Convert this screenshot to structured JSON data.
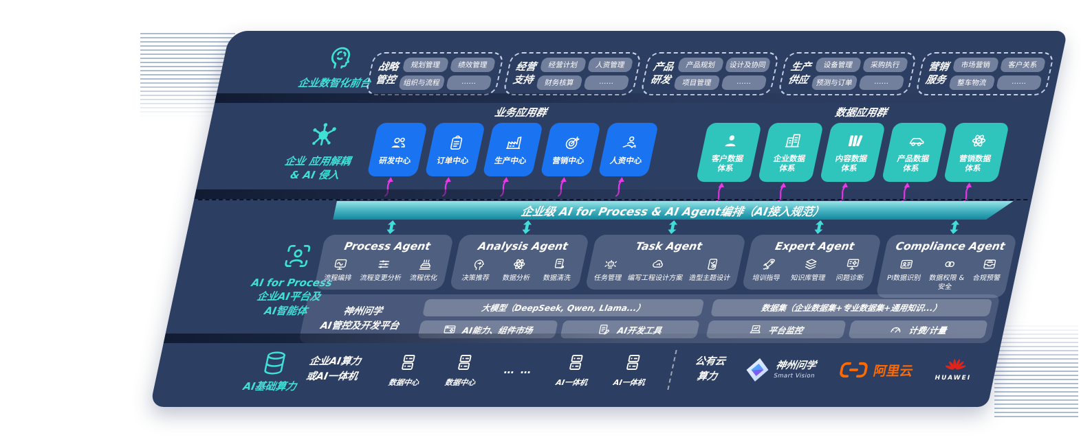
{
  "colors": {
    "panel_bg": "#2d3e63",
    "teal_accent": "#3fe0d6",
    "blue_tile": "#1a73f0",
    "teal_tile": "#2fc5bd",
    "magenta_arrow": "#e83ae8",
    "bus_gradient_top": "#9ae5e6",
    "bus_gradient_bottom": "#12889e",
    "aliyun_orange": "#ff6a00",
    "huawei_red": "#e2231a"
  },
  "front_office": {
    "label": "企业数智化前台",
    "icon": "brain-head",
    "groups": [
      {
        "title": "战略\n管控",
        "items": [
          "规划管理",
          "绩效管理",
          "组织与流程",
          "……"
        ]
      },
      {
        "title": "经营\n支持",
        "items": [
          "经营计划",
          "人资管理",
          "财务核算",
          "……"
        ]
      },
      {
        "title": "产品\n研发",
        "items": [
          "产品规划",
          "设计及协同",
          "项目管理",
          "……"
        ]
      },
      {
        "title": "生产\n供应",
        "items": [
          "设备管理",
          "采购执行",
          "预测与订单",
          "……"
        ]
      },
      {
        "title": "营销\n服务",
        "items": [
          "市场营销",
          "客户关系",
          "整车物流",
          "……"
        ]
      }
    ]
  },
  "decoupling": {
    "label": "企业 应用解耦\n& AI 侵入",
    "icon": "neuron",
    "business_group": {
      "title": "业务应用群",
      "tiles": [
        {
          "label": "研发中心",
          "icon": "users"
        },
        {
          "label": "订单中心",
          "icon": "clipboard"
        },
        {
          "label": "生产中心",
          "icon": "factory"
        },
        {
          "label": "营销中心",
          "icon": "target"
        },
        {
          "label": "人资中心",
          "icon": "person-trend"
        }
      ]
    },
    "data_group": {
      "title": "数据应用群",
      "tiles": [
        {
          "label": "客户数据\n体系",
          "icon": "person"
        },
        {
          "label": "企业数据\n体系",
          "icon": "building"
        },
        {
          "label": "内容数据\n体系",
          "icon": "books"
        },
        {
          "label": "产品数据\n体系",
          "icon": "car"
        },
        {
          "label": "营销数据\n体系",
          "icon": "atom"
        }
      ]
    }
  },
  "ai_bus": {
    "label": "企业级 AI for Process & AI Agent编排（AI接入规范）"
  },
  "ai_platform": {
    "label": "AI for Process\n企业AI平台及\nAI智能体",
    "icon": "scan-person",
    "agents": [
      {
        "title": "Process Agent",
        "items": [
          {
            "label": "流程编排",
            "icon": "monitor-wave"
          },
          {
            "label": "流程变更分析",
            "icon": "sliders"
          },
          {
            "label": "流程优化",
            "icon": "machine"
          }
        ]
      },
      {
        "title": "Analysis Agent",
        "items": [
          {
            "label": "决策推荐",
            "icon": "head-idea"
          },
          {
            "label": "数据分析",
            "icon": "atom"
          },
          {
            "label": "数据清洗",
            "icon": "doc-refresh"
          }
        ]
      },
      {
        "title": "Task Agent",
        "items": [
          {
            "label": "任务管理",
            "icon": "bot"
          },
          {
            "label": "编写工程设计方案",
            "icon": "cloud-nodes"
          },
          {
            "label": "造型主题设计",
            "icon": "tablet-check"
          }
        ]
      },
      {
        "title": "Expert Agent",
        "items": [
          {
            "label": "培训指导",
            "icon": "rocket"
          },
          {
            "label": "知识库管理",
            "icon": "layers"
          },
          {
            "label": "问题诊断",
            "icon": "screen-gear"
          }
        ]
      },
      {
        "title": "Compliance Agent",
        "items": [
          {
            "label": "PI数据识别",
            "icon": "id-card"
          },
          {
            "label": "数据权限 &\n安全",
            "icon": "links"
          },
          {
            "label": "合规预警",
            "icon": "inbox-alert"
          }
        ]
      }
    ],
    "platform": {
      "name": "神州问学\nAI管控及开发平台",
      "model_bar": "大模型（DeepSeek, Qwen, Llama...）",
      "dataset_bar": "数据集（企业数据集+专业数据集+通用知识...）",
      "cells": [
        {
          "label": "AI能力、组件市场",
          "icon": "window-gear"
        },
        {
          "label": "AI开发工具",
          "icon": "doc-pencil"
        },
        {
          "label": "平台监控",
          "icon": "laptop-chart"
        },
        {
          "label": "计费/计量",
          "icon": "gauge"
        }
      ]
    }
  },
  "infrastructure": {
    "label": "AI基础算力",
    "icon": "database",
    "compute_label": "企业AI算力\n或AI一体机",
    "nodes": [
      {
        "label": "数据中心",
        "icon": "server"
      },
      {
        "label": "数据中心",
        "icon": "server"
      },
      {
        "label": "… …"
      },
      {
        "label": "AI一体机",
        "icon": "server"
      },
      {
        "label": "AI一体机",
        "icon": "server"
      }
    ],
    "public_cloud": "公有云\n算力",
    "vendors": [
      {
        "name": "神州问学",
        "sub": "Smart Vision",
        "icon": "sv-diamond"
      },
      {
        "name": "阿里云",
        "icon": "aliyun"
      },
      {
        "name": "HUAWEI",
        "icon": "huawei-fan"
      }
    ]
  }
}
